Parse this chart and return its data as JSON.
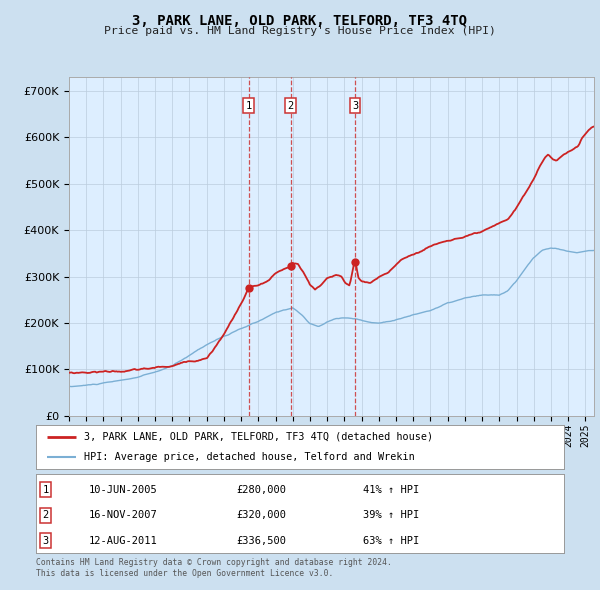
{
  "title": "3, PARK LANE, OLD PARK, TELFORD, TF3 4TQ",
  "subtitle": "Price paid vs. HM Land Registry's House Price Index (HPI)",
  "legend_line1": "3, PARK LANE, OLD PARK, TELFORD, TF3 4TQ (detached house)",
  "legend_line2": "HPI: Average price, detached house, Telford and Wrekin",
  "footer1": "Contains HM Land Registry data © Crown copyright and database right 2024.",
  "footer2": "This data is licensed under the Open Government Licence v3.0.",
  "transactions": [
    {
      "num": 1,
      "date": "10-JUN-2005",
      "price": 280000,
      "hpi_pct": "41%",
      "x_year": 2005.44
    },
    {
      "num": 2,
      "date": "16-NOV-2007",
      "price": 320000,
      "hpi_pct": "39%",
      "x_year": 2007.87
    },
    {
      "num": 3,
      "date": "12-AUG-2011",
      "price": 336500,
      "hpi_pct": "63%",
      "x_year": 2011.62
    }
  ],
  "hpi_color": "#7bafd4",
  "price_color": "#cc2222",
  "bg_color": "#cce0f0",
  "plot_bg": "#ddeeff",
  "grid_color": "#bbccdd",
  "vline_color": "#cc3333",
  "ylim": [
    0,
    730000
  ],
  "xlim_start": 1995.0,
  "xlim_end": 2025.5
}
